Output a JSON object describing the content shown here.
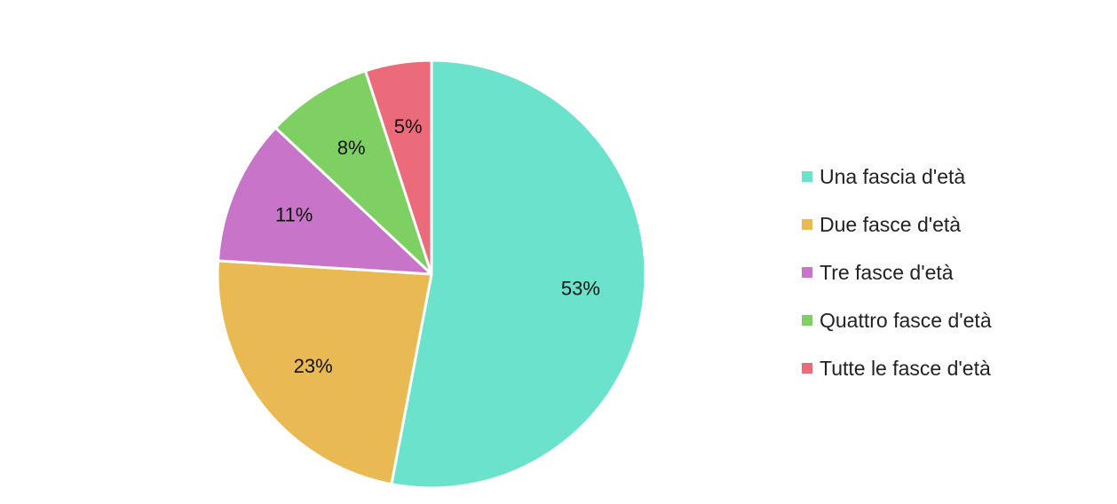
{
  "chart_data": {
    "type": "pie",
    "title": "",
    "legend_position": "right",
    "categories": [
      "Una fascia d'età",
      "Due fasce d'età",
      "Tre fasce d'età",
      "Quattro fasce d'età",
      "Tutte le fasce d'età"
    ],
    "values": [
      53,
      23,
      11,
      8,
      5
    ],
    "data_labels": [
      "53%",
      "23%",
      "11%",
      "8%",
      "5%"
    ],
    "colors": [
      "#6ae2cc",
      "#e9ba53",
      "#c874c8",
      "#7fd062",
      "#ec6b7a"
    ]
  }
}
